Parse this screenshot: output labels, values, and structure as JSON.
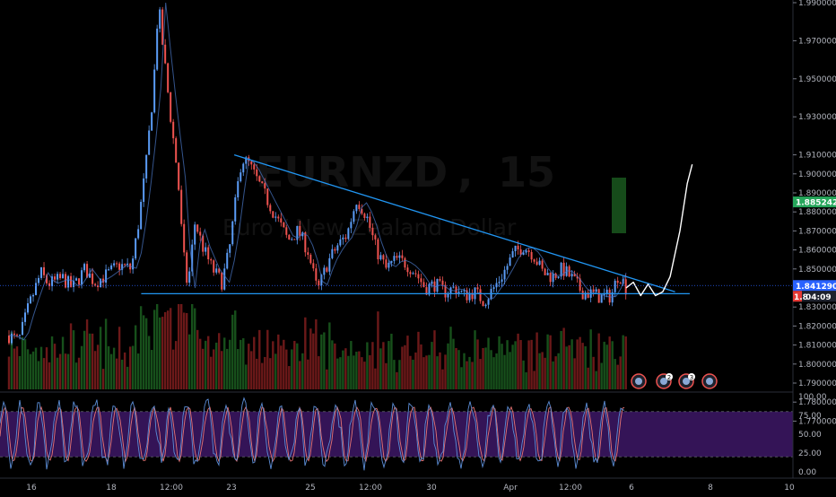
{
  "watermark": {
    "symbol": "EURNZD",
    "separator": ",",
    "interval": "15",
    "description": "Euro / New Zealand Dollar"
  },
  "colors": {
    "background": "#000000",
    "up_candle": "#5b9cf6",
    "down_candle": "#ef5350",
    "trendline": "#2196f3",
    "projection": "#ffffff",
    "vol_up": "#1b5e20",
    "vol_down": "#7f1d1d",
    "stoch_band": "#3a1660",
    "stoch_k": "#5b8dd6",
    "stoch_d": "#e57373",
    "last_price_tag": "#2962ff",
    "target_tag": "#26a65b",
    "countdown_tag": "#e53935"
  },
  "price_axis": {
    "ticks": [
      "1.990000",
      "1.970000",
      "1.950000",
      "1.930000",
      "1.910000",
      "1.900000",
      "1.890000",
      "1.880000",
      "1.870000",
      "1.860000",
      "1.850000",
      "1.830000",
      "1.820000",
      "1.810000",
      "1.800000",
      "1.790000",
      "1.780000",
      "1.770000"
    ]
  },
  "price_tags": {
    "target": "1.885242",
    "last": "1.841290",
    "countdown_prefix": "1.8",
    "countdown": "04:09"
  },
  "time_axis": {
    "labels": [
      "16",
      "18",
      "12:00",
      "23",
      "25",
      "12:00",
      "30",
      "Apr",
      "12:00",
      "6",
      "8",
      "10"
    ]
  },
  "oscillator_axis": {
    "ticks": [
      "100.00",
      "75.00",
      "50.00",
      "25.00",
      "0.00"
    ]
  },
  "event_markers": [
    {
      "icon": "dividend-icon",
      "badge": ""
    },
    {
      "icon": "dividend-icon",
      "badge": "2"
    },
    {
      "icon": "dividend-icon",
      "badge": "3"
    },
    {
      "icon": "dividend-icon",
      "badge": ""
    }
  ],
  "chart_data": {
    "type": "candlestick",
    "symbol": "EURNZD",
    "interval": "15",
    "ylim": [
      1.765,
      1.995
    ],
    "x_categories": [
      "16",
      "18",
      "12:00",
      "23",
      "25",
      "12:00",
      "30",
      "Apr",
      "12:00",
      "6",
      "8",
      "10"
    ],
    "price_path": [
      [
        0.0,
        1.815
      ],
      [
        0.4,
        1.812
      ],
      [
        0.8,
        1.83
      ],
      [
        1.3,
        1.848
      ],
      [
        1.6,
        1.842
      ],
      [
        2.2,
        1.845
      ],
      [
        2.6,
        1.84
      ],
      [
        3.1,
        1.85
      ],
      [
        3.5,
        1.843
      ],
      [
        4.0,
        1.847
      ],
      [
        4.5,
        1.852
      ],
      [
        5.0,
        1.85
      ],
      [
        5.3,
        1.875
      ],
      [
        5.6,
        1.905
      ],
      [
        5.9,
        1.945
      ],
      [
        6.1,
        1.99
      ],
      [
        6.3,
        1.965
      ],
      [
        6.6,
        1.93
      ],
      [
        6.9,
        1.898
      ],
      [
        7.1,
        1.86
      ],
      [
        7.3,
        1.84
      ],
      [
        7.6,
        1.875
      ],
      [
        7.9,
        1.862
      ],
      [
        8.3,
        1.85
      ],
      [
        8.7,
        1.843
      ],
      [
        9.0,
        1.86
      ],
      [
        9.3,
        1.89
      ],
      [
        9.5,
        1.908
      ],
      [
        9.8,
        1.905
      ],
      [
        10.2,
        1.895
      ],
      [
        10.6,
        1.885
      ],
      [
        11.0,
        1.875
      ],
      [
        11.4,
        1.865
      ],
      [
        11.8,
        1.87
      ],
      [
        12.2,
        1.86
      ],
      [
        12.6,
        1.838
      ],
      [
        13.0,
        1.853
      ],
      [
        13.4,
        1.862
      ],
      [
        13.8,
        1.868
      ],
      [
        14.2,
        1.887
      ],
      [
        14.6,
        1.878
      ],
      [
        15.0,
        1.86
      ],
      [
        15.4,
        1.85
      ],
      [
        15.8,
        1.855
      ],
      [
        16.2,
        1.853
      ],
      [
        16.6,
        1.848
      ],
      [
        17.0,
        1.84
      ],
      [
        17.4,
        1.842
      ],
      [
        17.8,
        1.838
      ],
      [
        18.2,
        1.84
      ],
      [
        18.6,
        1.836
      ],
      [
        19.0,
        1.838
      ],
      [
        19.4,
        1.833
      ],
      [
        19.8,
        1.84
      ],
      [
        20.2,
        1.848
      ],
      [
        20.6,
        1.858
      ],
      [
        21.0,
        1.862
      ],
      [
        21.4,
        1.858
      ],
      [
        21.8,
        1.848
      ],
      [
        22.2,
        1.846
      ],
      [
        22.6,
        1.85
      ],
      [
        23.0,
        1.845
      ],
      [
        23.4,
        1.838
      ],
      [
        23.8,
        1.837
      ],
      [
        24.2,
        1.835
      ],
      [
        24.6,
        1.836
      ],
      [
        24.9,
        1.848
      ],
      [
        25.2,
        1.84
      ]
    ],
    "trendlines": [
      {
        "name": "descending-resistance",
        "from": [
          9.2,
          1.91
        ],
        "to": [
          27.2,
          1.838
        ]
      },
      {
        "name": "horizontal-support",
        "from": [
          5.4,
          1.837
        ],
        "to": [
          27.8,
          1.837
        ]
      }
    ],
    "projection": [
      [
        25.2,
        1.84
      ],
      [
        25.5,
        1.843
      ],
      [
        25.8,
        1.836
      ],
      [
        26.1,
        1.842
      ],
      [
        26.4,
        1.836
      ],
      [
        26.7,
        1.838
      ],
      [
        27.0,
        1.846
      ],
      [
        27.4,
        1.87
      ],
      [
        27.7,
        1.895
      ],
      [
        27.9,
        1.905
      ]
    ],
    "target_price": 1.885242,
    "last_price": 1.84129,
    "volume": {
      "visible": true
    },
    "oscillator": {
      "type": "stochastic",
      "upper": 80,
      "lower": 20,
      "range": [
        0,
        100
      ]
    }
  }
}
